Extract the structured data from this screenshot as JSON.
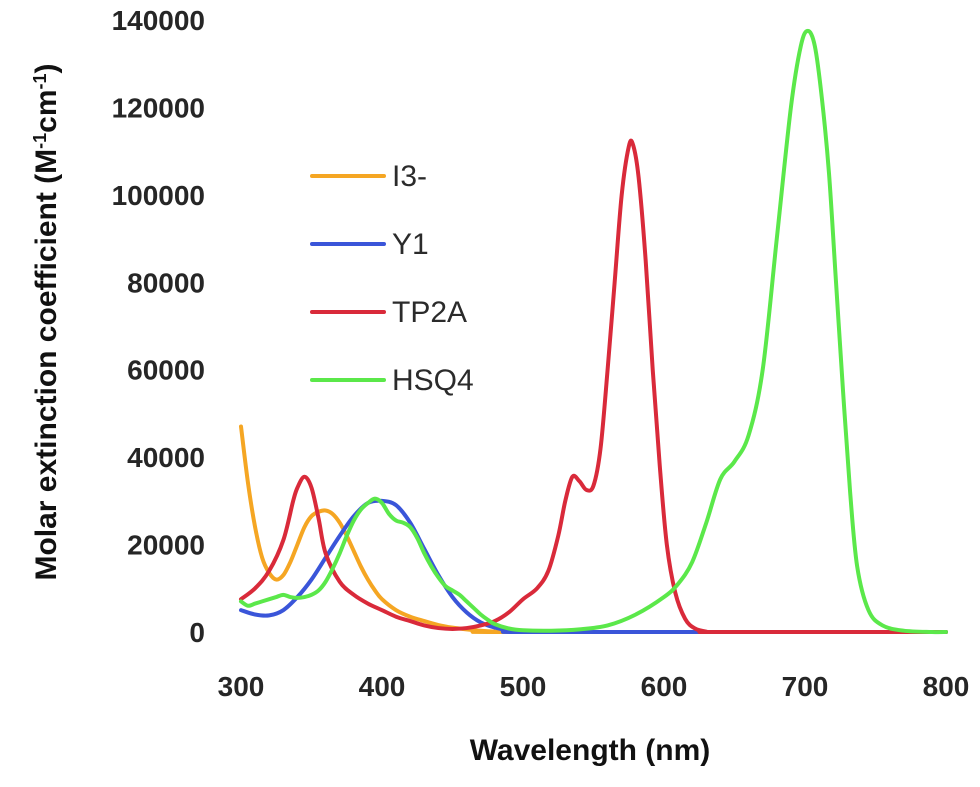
{
  "chart_data": {
    "type": "line",
    "title": "",
    "xlabel": "Wavelength (nm)",
    "ylabel": "Molar extinction coefficient (M-1cm-1)",
    "ylabel_parts": {
      "prefix": "Molar extinction coefficient (M",
      "sup1": "-1",
      "middle": "cm",
      "sup2": "-1",
      "suffix": ")"
    },
    "xlim": [
      300,
      800
    ],
    "ylim": [
      0,
      140000
    ],
    "x_ticks": [
      "300",
      "400",
      "500",
      "600",
      "700",
      "800"
    ],
    "y_ticks": [
      "0",
      "20000",
      "40000",
      "60000",
      "80000",
      "100000",
      "120000",
      "140000"
    ],
    "grid": false,
    "legend": "inside upper-left",
    "series": [
      {
        "name": "I3-",
        "color": "#F5A623",
        "points": [
          [
            300,
            47000
          ],
          [
            305,
            34000
          ],
          [
            310,
            24000
          ],
          [
            315,
            17000
          ],
          [
            320,
            13500
          ],
          [
            325,
            12000
          ],
          [
            330,
            13000
          ],
          [
            335,
            16000
          ],
          [
            340,
            20000
          ],
          [
            345,
            24000
          ],
          [
            350,
            26500
          ],
          [
            355,
            27500
          ],
          [
            360,
            27800
          ],
          [
            365,
            27000
          ],
          [
            370,
            25000
          ],
          [
            375,
            22000
          ],
          [
            380,
            18500
          ],
          [
            385,
            15000
          ],
          [
            390,
            12000
          ],
          [
            395,
            9500
          ],
          [
            400,
            7500
          ],
          [
            410,
            5000
          ],
          [
            420,
            3500
          ],
          [
            430,
            2500
          ],
          [
            440,
            1600
          ],
          [
            450,
            1000
          ],
          [
            460,
            600
          ],
          [
            470,
            300
          ],
          [
            480,
            100
          ],
          [
            490,
            0
          ],
          [
            800,
            0
          ]
        ]
      },
      {
        "name": "Y1",
        "color": "#3A55D9",
        "points": [
          [
            300,
            5000
          ],
          [
            310,
            4000
          ],
          [
            320,
            3800
          ],
          [
            330,
            5000
          ],
          [
            340,
            8000
          ],
          [
            350,
            12000
          ],
          [
            360,
            17000
          ],
          [
            370,
            22000
          ],
          [
            380,
            26500
          ],
          [
            390,
            29500
          ],
          [
            400,
            30000
          ],
          [
            410,
            29000
          ],
          [
            420,
            25000
          ],
          [
            430,
            19000
          ],
          [
            440,
            13000
          ],
          [
            450,
            8000
          ],
          [
            460,
            4500
          ],
          [
            470,
            2200
          ],
          [
            480,
            1000
          ],
          [
            490,
            400
          ],
          [
            500,
            100
          ],
          [
            510,
            0
          ],
          [
            800,
            0
          ]
        ]
      },
      {
        "name": "TP2A",
        "color": "#D92A3A",
        "points": [
          [
            300,
            7500
          ],
          [
            310,
            10000
          ],
          [
            320,
            14000
          ],
          [
            330,
            21000
          ],
          [
            337,
            30000
          ],
          [
            340,
            33000
          ],
          [
            345,
            35500
          ],
          [
            350,
            33000
          ],
          [
            355,
            26000
          ],
          [
            360,
            18000
          ],
          [
            370,
            11500
          ],
          [
            380,
            8500
          ],
          [
            390,
            6500
          ],
          [
            400,
            5000
          ],
          [
            410,
            3500
          ],
          [
            420,
            2500
          ],
          [
            430,
            1500
          ],
          [
            440,
            900
          ],
          [
            450,
            700
          ],
          [
            460,
            900
          ],
          [
            470,
            1500
          ],
          [
            480,
            2500
          ],
          [
            490,
            4500
          ],
          [
            500,
            7500
          ],
          [
            510,
            10000
          ],
          [
            518,
            14000
          ],
          [
            525,
            22000
          ],
          [
            530,
            30000
          ],
          [
            535,
            35500
          ],
          [
            540,
            34500
          ],
          [
            545,
            32500
          ],
          [
            550,
            33500
          ],
          [
            555,
            42000
          ],
          [
            560,
            60000
          ],
          [
            565,
            80000
          ],
          [
            570,
            100000
          ],
          [
            575,
            111000
          ],
          [
            578,
            111500
          ],
          [
            582,
            104000
          ],
          [
            587,
            85000
          ],
          [
            592,
            60000
          ],
          [
            597,
            38000
          ],
          [
            602,
            20000
          ],
          [
            608,
            9000
          ],
          [
            615,
            3000
          ],
          [
            622,
            800
          ],
          [
            630,
            100
          ],
          [
            640,
            0
          ],
          [
            800,
            0
          ]
        ]
      },
      {
        "name": "HSQ4",
        "color": "#5BE84A",
        "points": [
          [
            300,
            7000
          ],
          [
            305,
            6000
          ],
          [
            310,
            6500
          ],
          [
            315,
            7000
          ],
          [
            320,
            7500
          ],
          [
            325,
            8000
          ],
          [
            330,
            8500
          ],
          [
            335,
            8000
          ],
          [
            340,
            7800
          ],
          [
            345,
            8000
          ],
          [
            350,
            8500
          ],
          [
            355,
            9500
          ],
          [
            360,
            11500
          ],
          [
            365,
            14500
          ],
          [
            370,
            18000
          ],
          [
            375,
            22000
          ],
          [
            380,
            25500
          ],
          [
            385,
            28000
          ],
          [
            390,
            29500
          ],
          [
            395,
            30500
          ],
          [
            400,
            29500
          ],
          [
            405,
            27000
          ],
          [
            410,
            25500
          ],
          [
            415,
            25000
          ],
          [
            420,
            24000
          ],
          [
            425,
            21500
          ],
          [
            430,
            18000
          ],
          [
            435,
            15000
          ],
          [
            440,
            12500
          ],
          [
            445,
            10500
          ],
          [
            450,
            9500
          ],
          [
            455,
            8500
          ],
          [
            460,
            7000
          ],
          [
            465,
            5500
          ],
          [
            470,
            4000
          ],
          [
            475,
            2800
          ],
          [
            480,
            1800
          ],
          [
            490,
            800
          ],
          [
            500,
            400
          ],
          [
            520,
            300
          ],
          [
            540,
            600
          ],
          [
            560,
            1500
          ],
          [
            580,
            4000
          ],
          [
            600,
            8000
          ],
          [
            610,
            11000
          ],
          [
            620,
            16000
          ],
          [
            630,
            25000
          ],
          [
            640,
            35000
          ],
          [
            650,
            39000
          ],
          [
            660,
            45000
          ],
          [
            670,
            60000
          ],
          [
            680,
            90000
          ],
          [
            690,
            120000
          ],
          [
            697,
            134000
          ],
          [
            702,
            137500
          ],
          [
            707,
            134000
          ],
          [
            712,
            122000
          ],
          [
            717,
            105000
          ],
          [
            722,
            80000
          ],
          [
            727,
            55000
          ],
          [
            732,
            32000
          ],
          [
            737,
            15000
          ],
          [
            745,
            5000
          ],
          [
            755,
            1500
          ],
          [
            770,
            300
          ],
          [
            790,
            0
          ],
          [
            800,
            0
          ]
        ]
      }
    ]
  }
}
